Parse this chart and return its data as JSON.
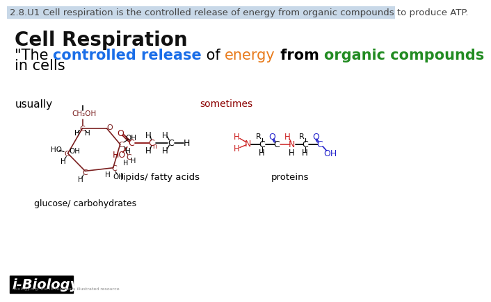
{
  "bg_color": "#ffffff",
  "header_bg": "#c8d8e8",
  "header_text": "2.8.U1 Cell respiration is the controlled release of energy from organic compounds to produce ATP.",
  "header_color": "#444444",
  "header_fontsize": 9.5,
  "title_text": "Cell Respiration",
  "title_fontsize": 20,
  "title_color": "#111111",
  "quote_fontsize": 15,
  "quote_line2": "in cells",
  "usually_text": "usually",
  "sometimes_text": "sometimes",
  "sometimes_color": "#8b0000",
  "glucose_label": "glucose/ carbohydrates",
  "lipids_label": "lipids/ fatty acids",
  "proteins_label": "proteins",
  "ibiology_bg": "#000000",
  "ibiology_text": "i-Biology",
  "ibiology_color": "#ffffff",
  "bond_color_glucose": "#7b2020",
  "bond_color_lipid": "#8b0000",
  "bond_color_protein_red": "#cc2222",
  "bond_color_protein_blue": "#2222cc"
}
